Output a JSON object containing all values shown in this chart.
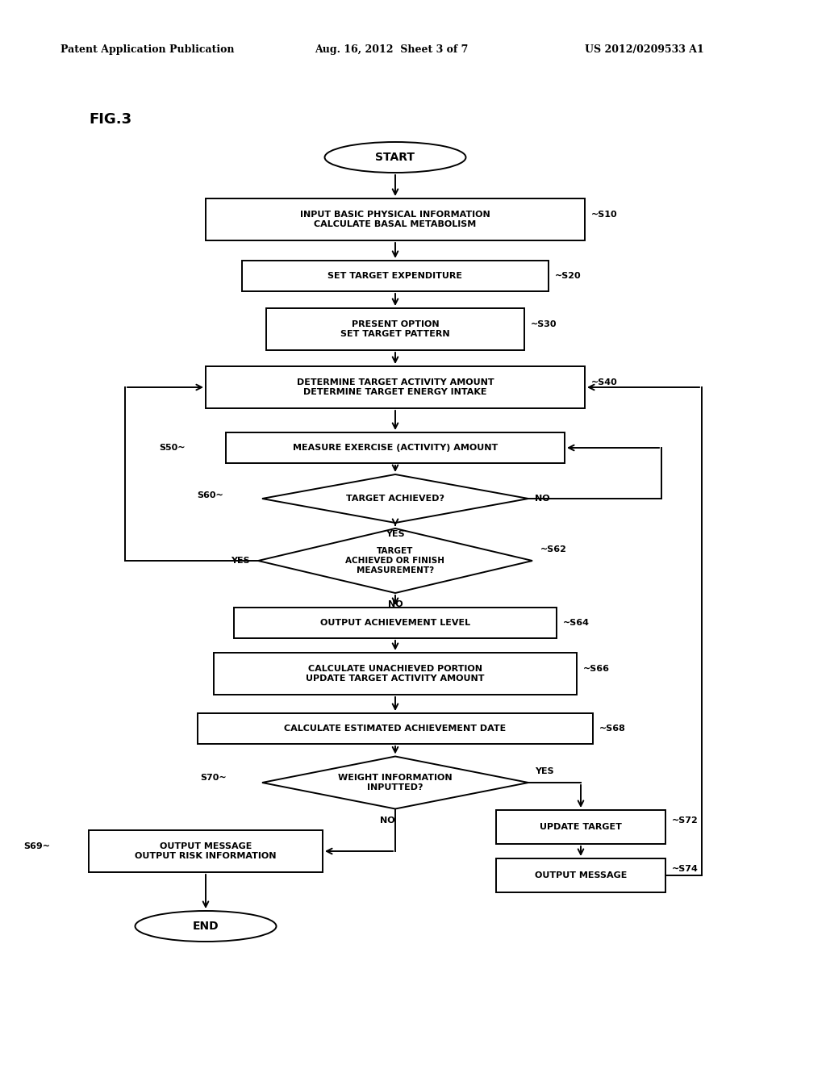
{
  "title_left": "Patent Application Publication",
  "title_mid": "Aug. 16, 2012  Sheet 3 of 7",
  "title_right": "US 2012/0209533 A1",
  "fig_label": "FIG.3",
  "background_color": "#ffffff"
}
